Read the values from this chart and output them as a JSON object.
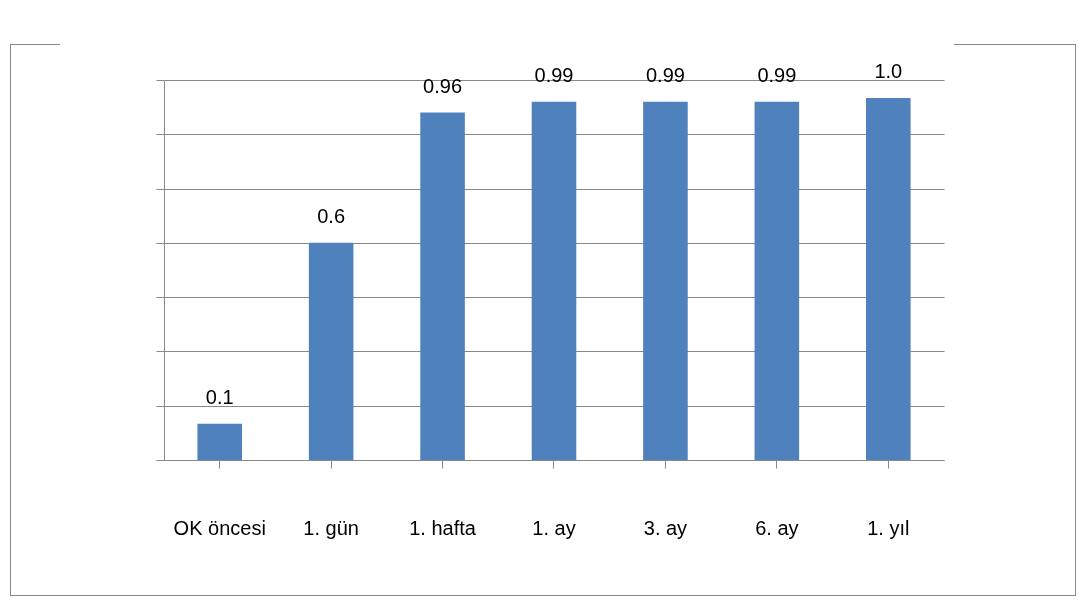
{
  "chart_data": {
    "type": "bar",
    "categories": [
      "OK öncesi",
      "1. gün",
      "1. hafta",
      "1. ay",
      "3. ay",
      "6. ay",
      "1. yıl"
    ],
    "values": [
      0.1,
      0.6,
      0.96,
      0.99,
      0.99,
      0.99,
      1.0
    ],
    "value_labels": [
      "0.1",
      "0.6",
      "0.96",
      "0.99",
      "0.99",
      "0.99",
      "1.0"
    ],
    "color": "#4f81bd",
    "ylim": [
      0,
      1.05
    ],
    "yticks": [
      {
        "value": 0,
        "label": null
      },
      {
        "value": 0.15,
        "label": null
      },
      {
        "value": 0.3,
        "label": null
      },
      {
        "value": 0.45,
        "label": null
      },
      {
        "value": 0.6,
        "label": null
      },
      {
        "value": 0.75,
        "label": null
      },
      {
        "value": 0.9,
        "label": null
      },
      {
        "value": 1.05,
        "label": null
      }
    ],
    "tick_labels": "x",
    "grid": "y"
  }
}
